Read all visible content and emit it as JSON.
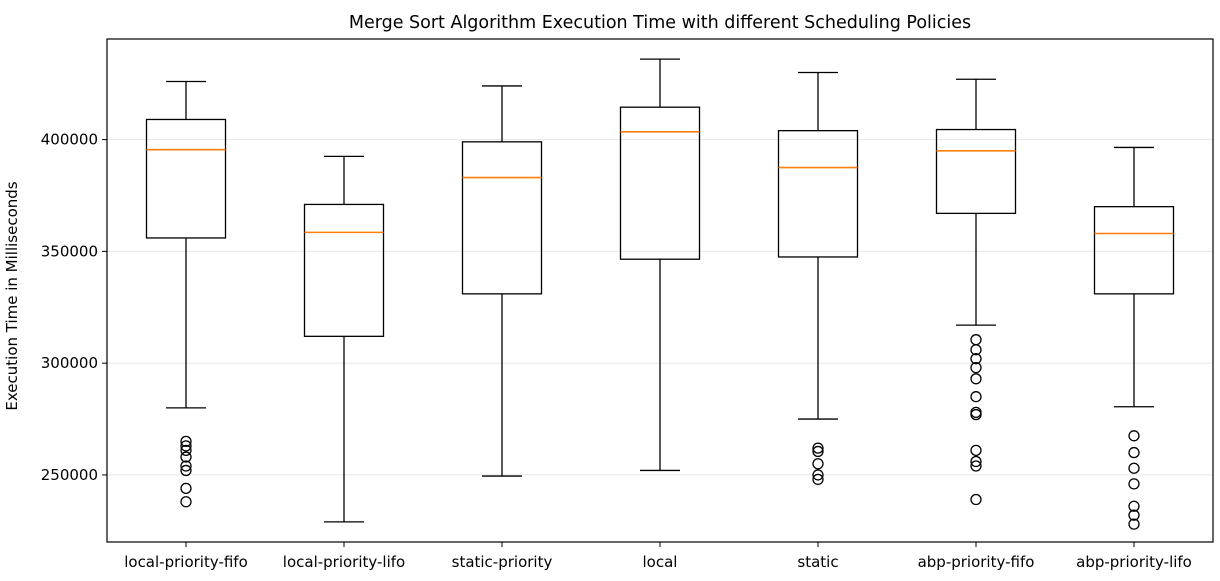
{
  "chart_data": {
    "type": "boxplot",
    "title": "Merge Sort Algorithm Execution Time with different Scheduling Policies",
    "xlabel": "",
    "ylabel": "Execution Time in Milliseconds",
    "ylim": [
      220000,
      445000
    ],
    "yticks": [
      250000,
      300000,
      350000,
      400000
    ],
    "grid": "horizontal",
    "categories": [
      "local-priority-fifo",
      "local-priority-lifo",
      "static-priority",
      "local",
      "static",
      "abp-priority-fifo",
      "abp-priority-lifo"
    ],
    "boxes": [
      {
        "whislo": 280000,
        "q1": 356000,
        "med": 395500,
        "q3": 409000,
        "whishi": 426000,
        "fliers": [
          238000,
          244000,
          252000,
          254000,
          258000,
          261000,
          263000,
          265000
        ]
      },
      {
        "whislo": 229000,
        "q1": 312000,
        "med": 358500,
        "q3": 371000,
        "whishi": 392500,
        "fliers": []
      },
      {
        "whislo": 249500,
        "q1": 331000,
        "med": 383000,
        "q3": 399000,
        "whishi": 424000,
        "fliers": []
      },
      {
        "whislo": 252000,
        "q1": 346500,
        "med": 403500,
        "q3": 414500,
        "whishi": 436000,
        "fliers": []
      },
      {
        "whislo": 275000,
        "q1": 347500,
        "med": 387500,
        "q3": 404000,
        "whishi": 430000,
        "fliers": [
          248000,
          250000,
          255000,
          260500,
          262000
        ]
      },
      {
        "whislo": 317000,
        "q1": 367000,
        "med": 395000,
        "q3": 404500,
        "whishi": 427000,
        "fliers": [
          239000,
          254000,
          256000,
          261000,
          277000,
          278000,
          285000,
          293000,
          298000,
          302000,
          306000,
          310500
        ]
      },
      {
        "whislo": 280500,
        "q1": 331000,
        "med": 358000,
        "q3": 370000,
        "whishi": 396500,
        "fliers": [
          228000,
          232000,
          236000,
          246000,
          253000,
          260000,
          267500
        ]
      }
    ]
  }
}
